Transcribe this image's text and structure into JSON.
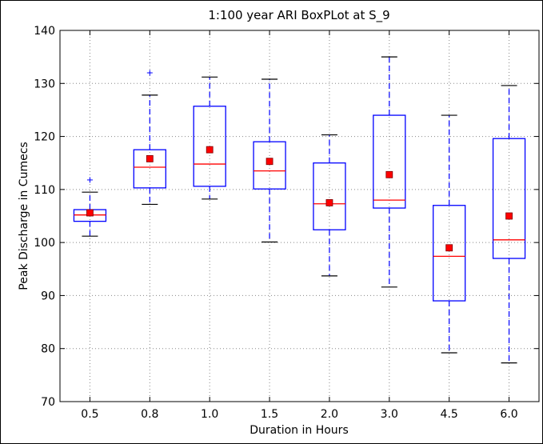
{
  "chart_data": {
    "type": "box",
    "title": "1:100 year ARI BoxPLot at S_9",
    "xlabel": "Duration in Hours",
    "ylabel": "Peak Discharge in Cumecs",
    "categories": [
      "0.5",
      "0.8",
      "1.0",
      "1.5",
      "2.0",
      "3.0",
      "4.5",
      "6.0"
    ],
    "ylim": [
      70,
      140
    ],
    "yticks": [
      70,
      80,
      90,
      100,
      110,
      120,
      130,
      140
    ],
    "grid": true,
    "boxes": [
      {
        "category": "0.5",
        "whisker_low": 101.2,
        "q1": 104.0,
        "median": 105.2,
        "q3": 106.2,
        "whisker_high": 109.5,
        "mean": 105.6,
        "outliers": [
          111.8
        ]
      },
      {
        "category": "0.8",
        "whisker_low": 107.2,
        "q1": 110.3,
        "median": 114.2,
        "q3": 117.5,
        "whisker_high": 127.8,
        "mean": 115.8,
        "outliers": [
          132.0
        ]
      },
      {
        "category": "1.0",
        "whisker_low": 108.2,
        "q1": 110.6,
        "median": 114.8,
        "q3": 125.7,
        "whisker_high": 131.2,
        "mean": 117.5,
        "outliers": []
      },
      {
        "category": "1.5",
        "whisker_low": 100.1,
        "q1": 110.1,
        "median": 113.5,
        "q3": 119.0,
        "whisker_high": 130.8,
        "mean": 115.3,
        "outliers": []
      },
      {
        "category": "2.0",
        "whisker_low": 93.7,
        "q1": 102.4,
        "median": 107.3,
        "q3": 115.0,
        "whisker_high": 120.3,
        "mean": 107.5,
        "outliers": []
      },
      {
        "category": "3.0",
        "whisker_low": 91.6,
        "q1": 106.5,
        "median": 108.0,
        "q3": 124.0,
        "whisker_high": 135.0,
        "mean": 112.8,
        "outliers": []
      },
      {
        "category": "4.5",
        "whisker_low": 79.2,
        "q1": 89.0,
        "median": 97.4,
        "q3": 107.0,
        "whisker_high": 124.0,
        "mean": 99.0,
        "outliers": []
      },
      {
        "category": "6.0",
        "whisker_low": 77.3,
        "q1": 97.0,
        "median": 100.5,
        "q3": 119.6,
        "whisker_high": 129.6,
        "mean": 105.0,
        "outliers": []
      }
    ],
    "colors": {
      "box": "#0000ff",
      "whisker": "#0000ff",
      "cap": "#000000",
      "median": "#ff0000",
      "mean_marker": "#ff0000",
      "mean_marker_edge": "#800000",
      "outlier": "#0000ff",
      "grid": "#888888"
    }
  }
}
